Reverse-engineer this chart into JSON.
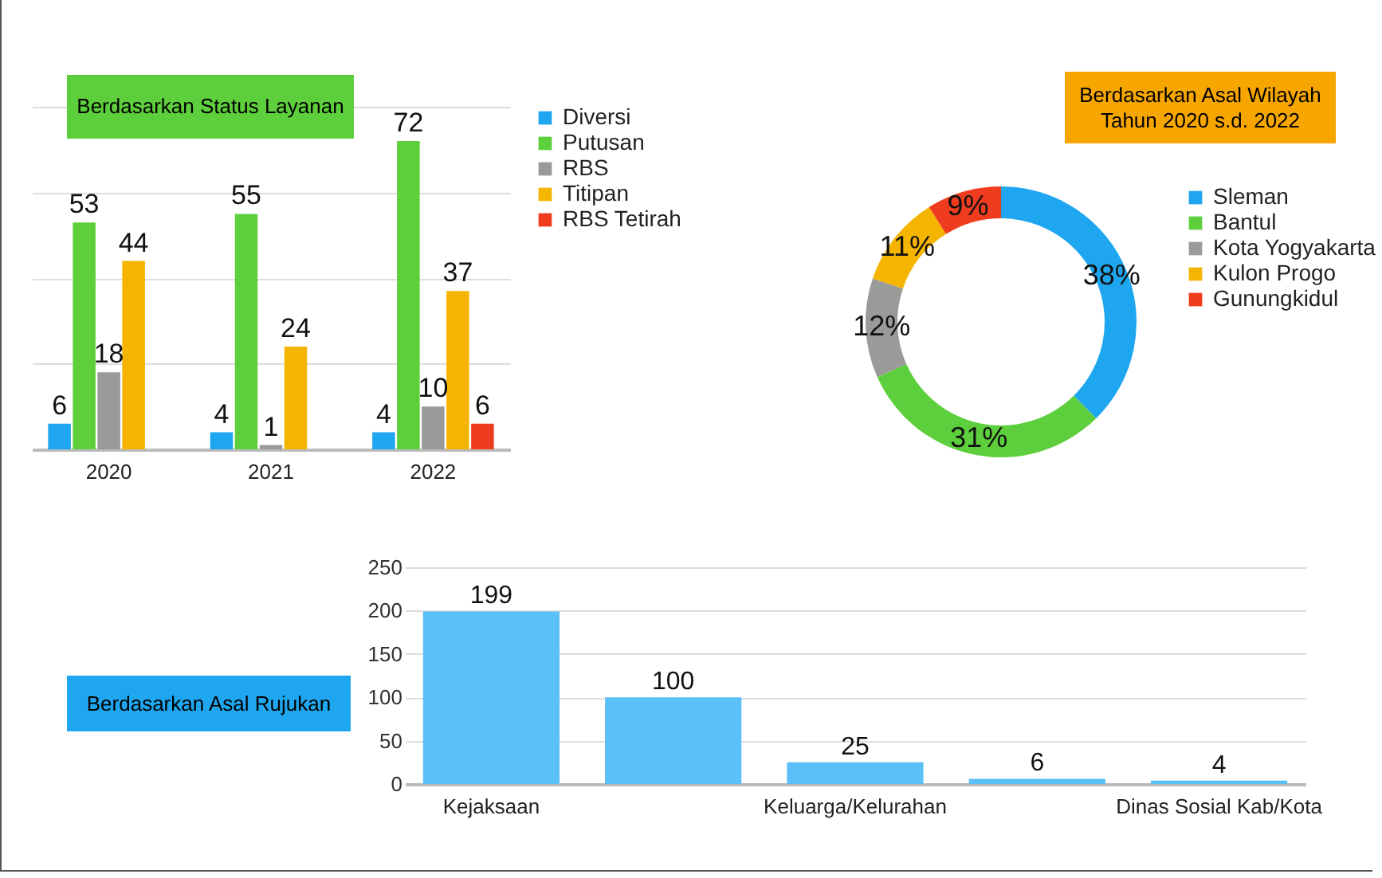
{
  "chart_data": [
    {
      "type": "bar",
      "title": "Berdasarkan Status Layanan",
      "categories": [
        "2020",
        "2021",
        "2022"
      ],
      "series": [
        {
          "name": "Diversi",
          "color": "#1ea7f0",
          "values": [
            6,
            4,
            4
          ]
        },
        {
          "name": "Putusan",
          "color": "#5ecf3c",
          "values": [
            53,
            55,
            72
          ]
        },
        {
          "name": "RBS",
          "color": "#9a9a9a",
          "values": [
            18,
            1,
            10
          ]
        },
        {
          "name": "Titipan",
          "color": "#f4b400",
          "values": [
            44,
            24,
            37
          ]
        },
        {
          "name": "RBS Tetirah",
          "color": "#f03c1e",
          "values": [
            null,
            null,
            6
          ]
        }
      ],
      "ylim": [
        0,
        80
      ],
      "yticks": [
        {
          "value": 0,
          "label": null
        },
        {
          "value": 20,
          "label": null
        },
        {
          "value": 40,
          "label": null
        },
        {
          "value": 60,
          "label": null
        },
        {
          "value": 80,
          "label": null
        }
      ],
      "tick_labels": "x",
      "grid": "y",
      "data_labels": true,
      "legend": "right"
    },
    {
      "type": "donut",
      "title": "Berdasarkan Asal Wilayah Tahun 2020 s.d. 2022",
      "categories": [
        "Sleman",
        "Bantul",
        "Kota Yogyakarta",
        "Kulon Progo",
        "Gunungkidul"
      ],
      "values": [
        38,
        31,
        12,
        11,
        9
      ],
      "colors": [
        "#1ea7f0",
        "#5ecf3c",
        "#9a9a9a",
        "#f4b400",
        "#f03c1e"
      ],
      "value_labels": [
        "38%",
        "31%",
        "12%",
        "11%",
        "9%"
      ],
      "legend": "right"
    },
    {
      "type": "bar",
      "title": "Berdasarkan Asal Rujukan",
      "categories": [
        "Kejaksaan",
        null,
        "Keluarga/Kelurahan",
        null,
        "Dinas Sosial Kab/Kota"
      ],
      "values": [
        199,
        100,
        25,
        6,
        4
      ],
      "color": "#5bbff8",
      "ylim": [
        0,
        250
      ],
      "yticks": [
        0,
        50,
        100,
        150,
        200,
        250
      ],
      "grid": "y",
      "data_labels": true
    }
  ]
}
